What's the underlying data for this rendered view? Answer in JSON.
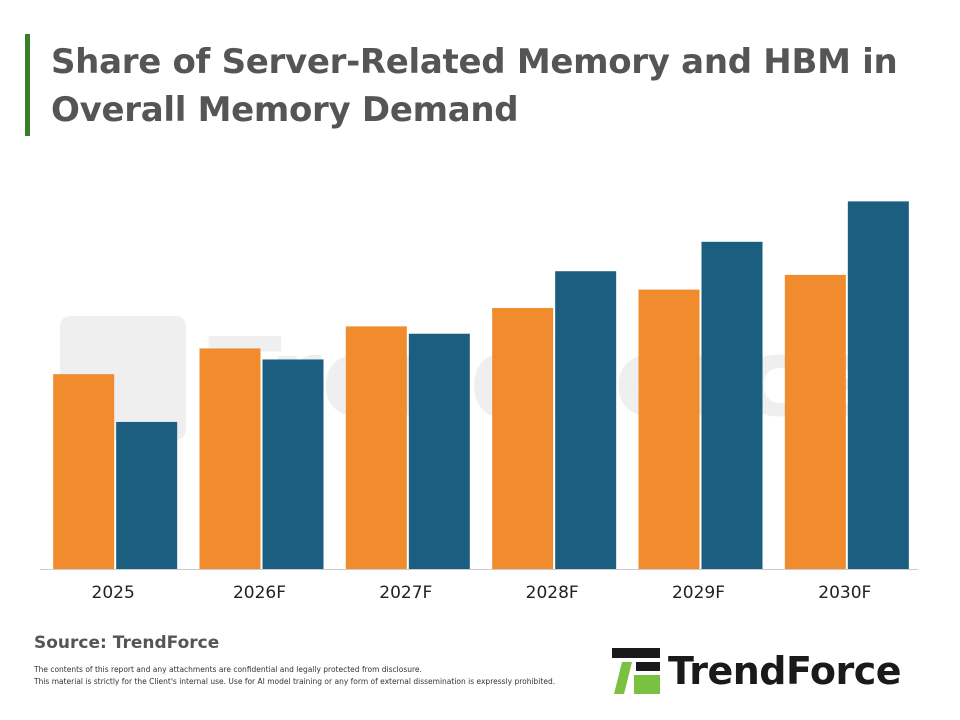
{
  "header": {
    "title": "Share of Server-Related Memory and HBM in Overall Memory Demand"
  },
  "colors": {
    "accent": "#3a7d2a",
    "series_orange": "#f08c2e",
    "series_blue": "#1b5e80"
  },
  "chart_data": {
    "type": "bar",
    "categories": [
      "2025",
      "2026F",
      "2027F",
      "2028F",
      "2029F",
      "2030F"
    ],
    "series": [
      {
        "values": [
          53,
          60,
          66,
          71,
          76,
          80
        ]
      },
      {
        "values": [
          40,
          57,
          64,
          81,
          89,
          100
        ]
      }
    ],
    "ylim": [
      0,
      105
    ],
    "grid": false,
    "legend": "none"
  },
  "footer": {
    "source": "Source: TrendForce",
    "disclaimer_1": "The contents of this report and any attachments are confidential and legally protected from disclosure.",
    "disclaimer_2": "This material is strictly for the Client's internal use. Use for AI model training or any form of external dissemination is expressly prohibited."
  },
  "logo": {
    "text": "TrendForce",
    "icon": "trendforce-logo-icon"
  }
}
